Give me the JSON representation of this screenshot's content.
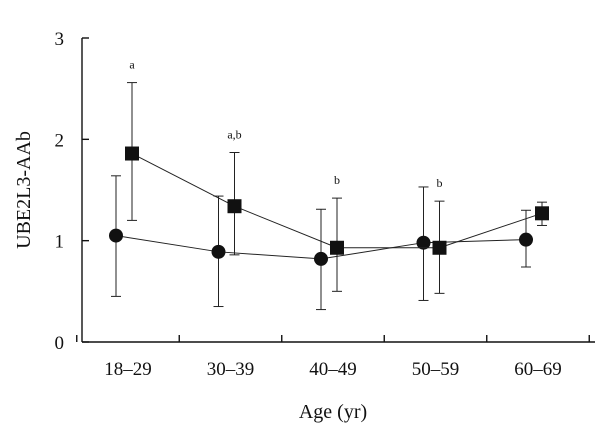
{
  "chart_data": {
    "type": "line",
    "title": "",
    "xlabel": "Age (yr)",
    "ylabel": "UBE2L3-AAb",
    "categories": [
      "18–29",
      "30–39",
      "40–49",
      "50–59",
      "60–69"
    ],
    "ylim": [
      0,
      3
    ],
    "yticks": [
      "0",
      "1",
      "2",
      "3"
    ],
    "series": [
      {
        "name": "circle",
        "marker": "circle",
        "values": [
          1.05,
          0.89,
          0.82,
          0.98,
          1.01
        ],
        "err_low": [
          0.45,
          0.35,
          0.32,
          0.41,
          0.74
        ],
        "err_high": [
          1.64,
          1.44,
          1.31,
          1.53,
          1.3
        ]
      },
      {
        "name": "square",
        "marker": "square",
        "values": [
          1.86,
          1.34,
          0.93,
          0.93,
          1.27
        ],
        "err_low": [
          1.2,
          0.86,
          0.5,
          0.48,
          1.15
        ],
        "err_high": [
          2.56,
          1.87,
          1.42,
          1.39,
          1.38
        ]
      }
    ],
    "annotations": [
      {
        "category": "18–29",
        "text": "a"
      },
      {
        "category": "30–39",
        "text": "a,b"
      },
      {
        "category": "40–49",
        "text": "b"
      },
      {
        "category": "50–59",
        "text": "b"
      }
    ]
  }
}
